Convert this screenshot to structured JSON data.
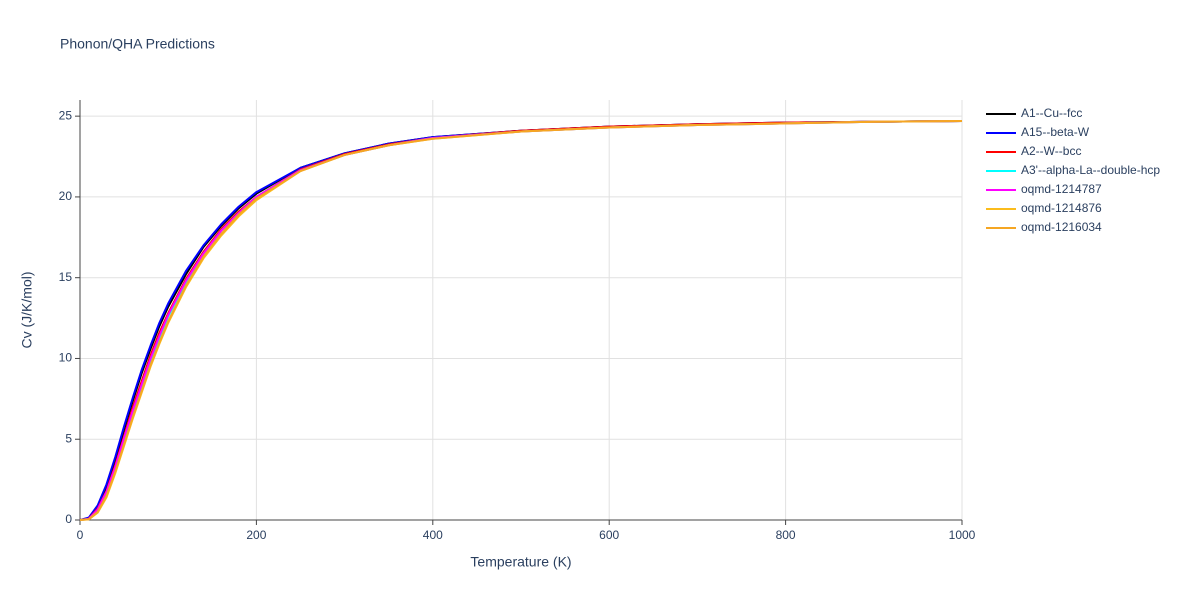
{
  "chart_data": {
    "type": "line",
    "title": "Phonon/QHA Predictions",
    "x_label": "Temperature (K)",
    "y_label": "Cv (J/K/mol)",
    "x": [
      0,
      10,
      20,
      30,
      40,
      50,
      60,
      70,
      80,
      90,
      100,
      120,
      140,
      160,
      180,
      200,
      250,
      300,
      350,
      400,
      500,
      600,
      700,
      800,
      900,
      1000
    ],
    "xlim": [
      0,
      1000
    ],
    "xticks": [
      0,
      200,
      400,
      600,
      800,
      1000
    ],
    "ylim": [
      0,
      26
    ],
    "yticks": [
      0,
      5,
      10,
      15,
      20,
      25
    ],
    "grid": true,
    "legend": "right",
    "series": [
      {
        "name": "A1--Cu--fcc",
        "color": "#000000",
        "values": [
          0,
          0.12,
          0.8,
          2.0,
          3.7,
          5.6,
          7.4,
          9.1,
          10.6,
          12.0,
          13.2,
          15.2,
          16.9,
          18.2,
          19.3,
          20.2,
          21.8,
          22.7,
          23.3,
          23.7,
          24.1,
          24.35,
          24.5,
          24.6,
          24.65,
          24.7
        ]
      },
      {
        "name": "A15--beta-W",
        "color": "#0000ff",
        "values": [
          0,
          0.15,
          0.9,
          2.2,
          3.9,
          5.8,
          7.6,
          9.3,
          10.8,
          12.2,
          13.4,
          15.4,
          17.0,
          18.3,
          19.4,
          20.3,
          21.8,
          22.7,
          23.3,
          23.7,
          24.1,
          24.35,
          24.5,
          24.6,
          24.65,
          24.7
        ]
      },
      {
        "name": "A2--W--bcc",
        "color": "#ff0000",
        "values": [
          0,
          0.08,
          0.7,
          1.8,
          3.4,
          5.2,
          7.0,
          8.6,
          10.2,
          11.6,
          12.8,
          14.9,
          16.6,
          18.0,
          19.1,
          20.0,
          21.7,
          22.65,
          23.25,
          23.65,
          24.1,
          24.35,
          24.5,
          24.6,
          24.65,
          24.7
        ]
      },
      {
        "name": "A3'--alpha-La--double-hcp",
        "color": "#00ffff",
        "values": [
          0,
          0.06,
          0.6,
          1.7,
          3.2,
          5.0,
          6.7,
          8.3,
          9.9,
          11.3,
          12.6,
          14.7,
          16.5,
          17.9,
          19.0,
          20.0,
          21.65,
          22.6,
          23.2,
          23.65,
          24.05,
          24.3,
          24.45,
          24.55,
          24.65,
          24.7
        ]
      },
      {
        "name": "oqmd-1214787",
        "color": "#ff00ff",
        "values": [
          0,
          0.07,
          0.65,
          1.75,
          3.3,
          5.1,
          6.8,
          8.4,
          10.0,
          11.4,
          12.7,
          14.8,
          16.5,
          17.9,
          19.0,
          20.0,
          21.65,
          22.6,
          23.2,
          23.65,
          24.05,
          24.3,
          24.45,
          24.55,
          24.65,
          24.7
        ]
      },
      {
        "name": "oqmd-1214876",
        "color": "#fbbc1c",
        "values": [
          0,
          0.04,
          0.45,
          1.4,
          2.9,
          4.6,
          6.3,
          7.9,
          9.5,
          10.9,
          12.2,
          14.4,
          16.2,
          17.6,
          18.8,
          19.8,
          21.6,
          22.6,
          23.2,
          23.6,
          24.05,
          24.3,
          24.45,
          24.55,
          24.65,
          24.7
        ]
      },
      {
        "name": "oqmd-1216034",
        "color": "#f5a623",
        "values": [
          0,
          0.05,
          0.5,
          1.5,
          3.0,
          4.7,
          6.4,
          8.0,
          9.6,
          11.0,
          12.3,
          14.5,
          16.3,
          17.7,
          18.9,
          19.9,
          21.6,
          22.6,
          23.2,
          23.6,
          24.05,
          24.3,
          24.45,
          24.55,
          24.65,
          24.7
        ]
      }
    ]
  }
}
